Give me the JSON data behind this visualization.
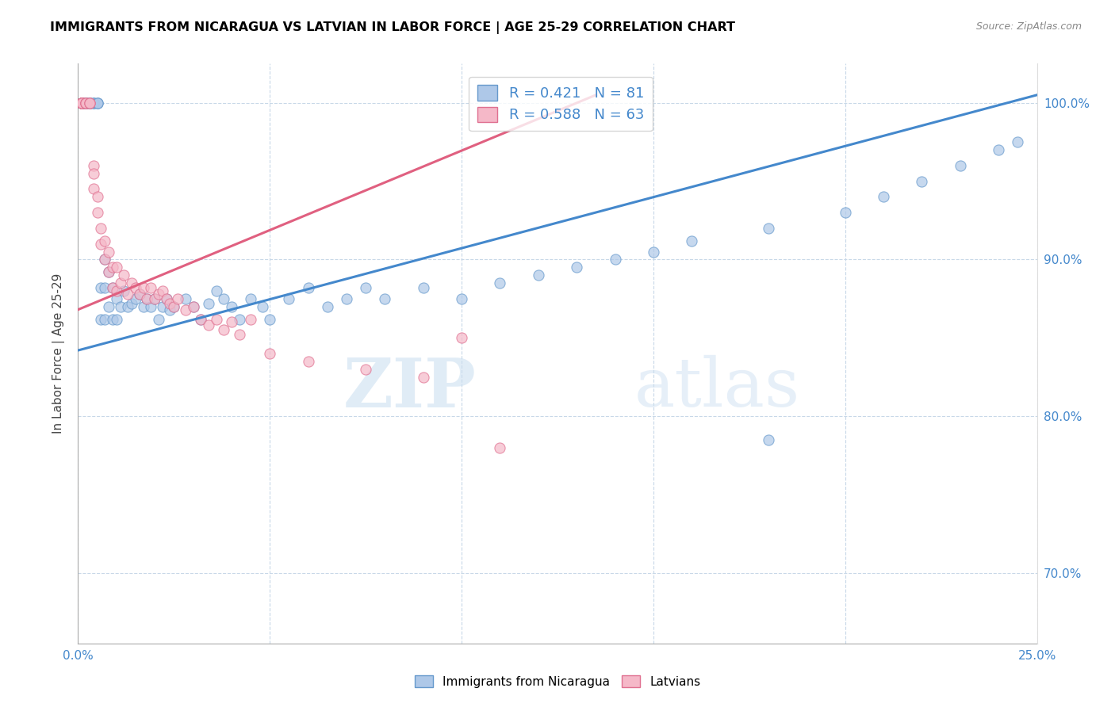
{
  "title": "IMMIGRANTS FROM NICARAGUA VS LATVIAN IN LABOR FORCE | AGE 25-29 CORRELATION CHART",
  "source": "Source: ZipAtlas.com",
  "ylabel": "In Labor Force | Age 25-29",
  "xlim": [
    0.0,
    0.25
  ],
  "ylim": [
    0.655,
    1.025
  ],
  "xtick_positions": [
    0.0,
    0.05,
    0.1,
    0.15,
    0.2,
    0.25
  ],
  "xticklabels": [
    "0.0%",
    "",
    "",
    "",
    "",
    "25.0%"
  ],
  "ytick_positions": [
    0.7,
    0.8,
    0.9,
    1.0
  ],
  "yticklabels": [
    "70.0%",
    "80.0%",
    "90.0%",
    "100.0%"
  ],
  "blue_R": 0.421,
  "blue_N": 81,
  "pink_R": 0.588,
  "pink_N": 63,
  "blue_color": "#aec8e8",
  "pink_color": "#f5b8c8",
  "blue_edge_color": "#6699cc",
  "pink_edge_color": "#e07090",
  "blue_line_color": "#4488cc",
  "pink_line_color": "#e06080",
  "legend_blue_label": "Immigrants from Nicaragua",
  "legend_pink_label": "Latvians",
  "watermark_zip": "ZIP",
  "watermark_atlas": "atlas",
  "blue_line_x0": 0.0,
  "blue_line_y0": 0.842,
  "blue_line_x1": 0.25,
  "blue_line_y1": 1.005,
  "pink_line_x0": 0.0,
  "pink_line_y0": 0.868,
  "pink_line_x1": 0.135,
  "pink_line_y1": 1.005,
  "blue_x": [
    0.001,
    0.001,
    0.001,
    0.001,
    0.001,
    0.001,
    0.001,
    0.002,
    0.002,
    0.002,
    0.002,
    0.002,
    0.003,
    0.003,
    0.003,
    0.003,
    0.004,
    0.004,
    0.004,
    0.005,
    0.005,
    0.005,
    0.006,
    0.006,
    0.007,
    0.007,
    0.007,
    0.008,
    0.008,
    0.009,
    0.009,
    0.01,
    0.01,
    0.011,
    0.012,
    0.013,
    0.014,
    0.015,
    0.016,
    0.017,
    0.018,
    0.019,
    0.02,
    0.021,
    0.022,
    0.023,
    0.024,
    0.025,
    0.028,
    0.03,
    0.032,
    0.034,
    0.036,
    0.038,
    0.04,
    0.042,
    0.045,
    0.048,
    0.05,
    0.055,
    0.06,
    0.065,
    0.07,
    0.075,
    0.08,
    0.09,
    0.1,
    0.11,
    0.12,
    0.13,
    0.14,
    0.15,
    0.16,
    0.18,
    0.2,
    0.21,
    0.22,
    0.23,
    0.24,
    0.245,
    0.18
  ],
  "blue_y": [
    1.0,
    1.0,
    1.0,
    1.0,
    1.0,
    1.0,
    1.0,
    1.0,
    1.0,
    1.0,
    1.0,
    1.0,
    1.0,
    1.0,
    1.0,
    1.0,
    1.0,
    1.0,
    1.0,
    1.0,
    1.0,
    1.0,
    0.882,
    0.862,
    0.9,
    0.882,
    0.862,
    0.892,
    0.87,
    0.882,
    0.862,
    0.875,
    0.862,
    0.87,
    0.88,
    0.87,
    0.872,
    0.875,
    0.878,
    0.87,
    0.875,
    0.87,
    0.875,
    0.862,
    0.87,
    0.875,
    0.868,
    0.87,
    0.875,
    0.87,
    0.862,
    0.872,
    0.88,
    0.875,
    0.87,
    0.862,
    0.875,
    0.87,
    0.862,
    0.875,
    0.882,
    0.87,
    0.875,
    0.882,
    0.875,
    0.882,
    0.875,
    0.885,
    0.89,
    0.895,
    0.9,
    0.905,
    0.912,
    0.92,
    0.93,
    0.94,
    0.95,
    0.96,
    0.97,
    0.975,
    0.785
  ],
  "pink_x": [
    0.001,
    0.001,
    0.001,
    0.001,
    0.001,
    0.001,
    0.001,
    0.001,
    0.001,
    0.001,
    0.002,
    0.002,
    0.002,
    0.002,
    0.003,
    0.003,
    0.003,
    0.004,
    0.004,
    0.004,
    0.005,
    0.005,
    0.006,
    0.006,
    0.007,
    0.007,
    0.008,
    0.008,
    0.009,
    0.009,
    0.01,
    0.01,
    0.011,
    0.012,
    0.013,
    0.014,
    0.015,
    0.016,
    0.017,
    0.018,
    0.019,
    0.02,
    0.021,
    0.022,
    0.023,
    0.024,
    0.025,
    0.026,
    0.028,
    0.03,
    0.032,
    0.034,
    0.036,
    0.038,
    0.04,
    0.042,
    0.045,
    0.05,
    0.06,
    0.075,
    0.09,
    0.1,
    0.11
  ],
  "pink_y": [
    1.0,
    1.0,
    1.0,
    1.0,
    1.0,
    1.0,
    1.0,
    1.0,
    1.0,
    1.0,
    1.0,
    1.0,
    1.0,
    1.0,
    1.0,
    1.0,
    1.0,
    0.96,
    0.955,
    0.945,
    0.94,
    0.93,
    0.92,
    0.91,
    0.912,
    0.9,
    0.905,
    0.892,
    0.895,
    0.882,
    0.895,
    0.88,
    0.885,
    0.89,
    0.878,
    0.885,
    0.882,
    0.878,
    0.882,
    0.875,
    0.882,
    0.875,
    0.878,
    0.88,
    0.875,
    0.872,
    0.87,
    0.875,
    0.868,
    0.87,
    0.862,
    0.858,
    0.862,
    0.855,
    0.86,
    0.852,
    0.862,
    0.84,
    0.835,
    0.83,
    0.825,
    0.85,
    0.78
  ]
}
